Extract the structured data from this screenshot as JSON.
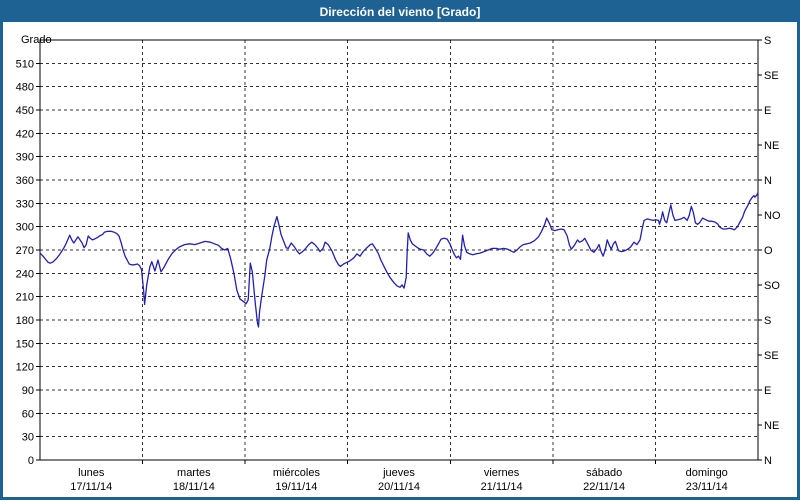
{
  "window": {
    "title": "Dirección del viento [Grado]"
  },
  "colors": {
    "titlebar": "#1e6294",
    "frame": "#1e6294",
    "plot_border": "#000000",
    "grid": "#333333",
    "line": "#2121ae",
    "background": "#ffffff",
    "text": "#000000"
  },
  "chart_data": {
    "type": "line",
    "title": "Dirección del viento [Grado]",
    "ylabel": "Grado",
    "xlabel": "",
    "ylim": [
      0,
      540
    ],
    "xlim": [
      0,
      7
    ],
    "grid": "dashed",
    "legend": "none",
    "y_ticks": [
      0,
      30,
      60,
      90,
      120,
      150,
      180,
      210,
      240,
      270,
      300,
      330,
      360,
      390,
      420,
      450,
      480,
      510
    ],
    "right_axis": [
      {
        "v": 0,
        "label": "N"
      },
      {
        "v": 45,
        "label": "NE"
      },
      {
        "v": 90,
        "label": "E"
      },
      {
        "v": 135,
        "label": "SE"
      },
      {
        "v": 180,
        "label": "S"
      },
      {
        "v": 225,
        "label": "SO"
      },
      {
        "v": 270,
        "label": "O"
      },
      {
        "v": 315,
        "label": "NO"
      },
      {
        "v": 360,
        "label": "N"
      },
      {
        "v": 405,
        "label": "NE"
      },
      {
        "v": 450,
        "label": "E"
      },
      {
        "v": 495,
        "label": "SE"
      },
      {
        "v": 540,
        "label": "S"
      }
    ],
    "x_day_boundaries": [
      1,
      2,
      3,
      4,
      5,
      6
    ],
    "days": [
      {
        "name": "lunes",
        "date": "17/11/14"
      },
      {
        "name": "martes",
        "date": "18/11/14"
      },
      {
        "name": "miércoles",
        "date": "19/11/14"
      },
      {
        "name": "jueves",
        "date": "20/11/14"
      },
      {
        "name": "viernes",
        "date": "21/11/14"
      },
      {
        "name": "sábado",
        "date": "22/11/14"
      },
      {
        "name": "domingo",
        "date": "23/11/14"
      }
    ],
    "series": [
      {
        "name": "Dirección del viento [Grado]",
        "color": "#2121ae",
        "points": [
          [
            0.0,
            266
          ],
          [
            0.03,
            262
          ],
          [
            0.06,
            257
          ],
          [
            0.08,
            254
          ],
          [
            0.1,
            253
          ],
          [
            0.13,
            255
          ],
          [
            0.16,
            259
          ],
          [
            0.19,
            264
          ],
          [
            0.21,
            268
          ],
          [
            0.23,
            272
          ],
          [
            0.25,
            277
          ],
          [
            0.27,
            283
          ],
          [
            0.29,
            289
          ],
          [
            0.31,
            283
          ],
          [
            0.33,
            279
          ],
          [
            0.35,
            283
          ],
          [
            0.37,
            287
          ],
          [
            0.39,
            283
          ],
          [
            0.41,
            279
          ],
          [
            0.43,
            273
          ],
          [
            0.45,
            277
          ],
          [
            0.47,
            288
          ],
          [
            0.49,
            285
          ],
          [
            0.51,
            283
          ],
          [
            0.53,
            284
          ],
          [
            0.56,
            286
          ],
          [
            0.58,
            288
          ],
          [
            0.61,
            290
          ],
          [
            0.63,
            293
          ],
          [
            0.66,
            294
          ],
          [
            0.69,
            294
          ],
          [
            0.72,
            293
          ],
          [
            0.75,
            291
          ],
          [
            0.77,
            288
          ],
          [
            0.79,
            280
          ],
          [
            0.81,
            270
          ],
          [
            0.83,
            262
          ],
          [
            0.85,
            257
          ],
          [
            0.87,
            252
          ],
          [
            0.89,
            251
          ],
          [
            0.92,
            251
          ],
          [
            0.95,
            252
          ],
          [
            0.97,
            250
          ],
          [
            0.99,
            245
          ],
          [
            1.01,
            218
          ],
          [
            1.02,
            200
          ],
          [
            1.04,
            225
          ],
          [
            1.07,
            248
          ],
          [
            1.09,
            255
          ],
          [
            1.12,
            243
          ],
          [
            1.15,
            257
          ],
          [
            1.18,
            242
          ],
          [
            1.21,
            248
          ],
          [
            1.25,
            258
          ],
          [
            1.29,
            266
          ],
          [
            1.33,
            271
          ],
          [
            1.36,
            274
          ],
          [
            1.41,
            277
          ],
          [
            1.46,
            278
          ],
          [
            1.51,
            277
          ],
          [
            1.56,
            279
          ],
          [
            1.61,
            281
          ],
          [
            1.66,
            280
          ],
          [
            1.7,
            278
          ],
          [
            1.74,
            276
          ],
          [
            1.77,
            272
          ],
          [
            1.8,
            270
          ],
          [
            1.83,
            272
          ],
          [
            1.86,
            258
          ],
          [
            1.89,
            240
          ],
          [
            1.92,
            218
          ],
          [
            1.95,
            207
          ],
          [
            1.98,
            204
          ],
          [
            2.01,
            201
          ],
          [
            2.03,
            206
          ],
          [
            2.05,
            253
          ],
          [
            2.07,
            242
          ],
          [
            2.1,
            200
          ],
          [
            2.12,
            176
          ],
          [
            2.13,
            171
          ],
          [
            2.14,
            190
          ],
          [
            2.16,
            210
          ],
          [
            2.19,
            235
          ],
          [
            2.21,
            257
          ],
          [
            2.24,
            272
          ],
          [
            2.26,
            287
          ],
          [
            2.28,
            300
          ],
          [
            2.31,
            313
          ],
          [
            2.33,
            302
          ],
          [
            2.35,
            290
          ],
          [
            2.37,
            283
          ],
          [
            2.4,
            273
          ],
          [
            2.42,
            272
          ],
          [
            2.45,
            279
          ],
          [
            2.48,
            274
          ],
          [
            2.51,
            268
          ],
          [
            2.53,
            265
          ],
          [
            2.56,
            268
          ],
          [
            2.59,
            272
          ],
          [
            2.62,
            277
          ],
          [
            2.65,
            280
          ],
          [
            2.68,
            277
          ],
          [
            2.71,
            272
          ],
          [
            2.73,
            268
          ],
          [
            2.76,
            272
          ],
          [
            2.78,
            280
          ],
          [
            2.81,
            277
          ],
          [
            2.85,
            268
          ],
          [
            2.88,
            258
          ],
          [
            2.91,
            251
          ],
          [
            2.93,
            249
          ],
          [
            2.96,
            252
          ],
          [
            2.99,
            254
          ],
          [
            3.02,
            256
          ],
          [
            3.06,
            260
          ],
          [
            3.09,
            265
          ],
          [
            3.12,
            262
          ],
          [
            3.15,
            268
          ],
          [
            3.18,
            272
          ],
          [
            3.22,
            277
          ],
          [
            3.24,
            278
          ],
          [
            3.27,
            272
          ],
          [
            3.3,
            265
          ],
          [
            3.32,
            258
          ],
          [
            3.35,
            250
          ],
          [
            3.38,
            242
          ],
          [
            3.41,
            235
          ],
          [
            3.45,
            228
          ],
          [
            3.48,
            224
          ],
          [
            3.51,
            222
          ],
          [
            3.53,
            225
          ],
          [
            3.55,
            221
          ],
          [
            3.57,
            235
          ],
          [
            3.58,
            268
          ],
          [
            3.59,
            292
          ],
          [
            3.61,
            283
          ],
          [
            3.63,
            278
          ],
          [
            3.66,
            275
          ],
          [
            3.69,
            272
          ],
          [
            3.71,
            271
          ],
          [
            3.74,
            270
          ],
          [
            3.77,
            265
          ],
          [
            3.8,
            262
          ],
          [
            3.83,
            266
          ],
          [
            3.86,
            272
          ],
          [
            3.89,
            279
          ],
          [
            3.91,
            284
          ],
          [
            3.94,
            285
          ],
          [
            3.97,
            284
          ],
          [
            4.0,
            277
          ],
          [
            4.02,
            270
          ],
          [
            4.04,
            264
          ],
          [
            4.06,
            260
          ],
          [
            4.08,
            262
          ],
          [
            4.1,
            258
          ],
          [
            4.12,
            289
          ],
          [
            4.14,
            275
          ],
          [
            4.16,
            267
          ],
          [
            4.19,
            265
          ],
          [
            4.22,
            264
          ],
          [
            4.25,
            265
          ],
          [
            4.29,
            266
          ],
          [
            4.33,
            268
          ],
          [
            4.37,
            270
          ],
          [
            4.41,
            272
          ],
          [
            4.45,
            272
          ],
          [
            4.48,
            271
          ],
          [
            4.52,
            272
          ],
          [
            4.56,
            271
          ],
          [
            4.59,
            269
          ],
          [
            4.62,
            267
          ],
          [
            4.65,
            270
          ],
          [
            4.68,
            274
          ],
          [
            4.71,
            277
          ],
          [
            4.75,
            278
          ],
          [
            4.78,
            279
          ],
          [
            4.82,
            282
          ],
          [
            4.86,
            287
          ],
          [
            4.89,
            294
          ],
          [
            4.92,
            303
          ],
          [
            4.94,
            311
          ],
          [
            4.97,
            303
          ],
          [
            4.99,
            296
          ],
          [
            5.02,
            295
          ],
          [
            5.05,
            296
          ],
          [
            5.08,
            297
          ],
          [
            5.11,
            296
          ],
          [
            5.14,
            288
          ],
          [
            5.16,
            277
          ],
          [
            5.18,
            271
          ],
          [
            5.21,
            276
          ],
          [
            5.24,
            283
          ],
          [
            5.26,
            280
          ],
          [
            5.29,
            282
          ],
          [
            5.31,
            285
          ],
          [
            5.34,
            278
          ],
          [
            5.37,
            270
          ],
          [
            5.4,
            267
          ],
          [
            5.43,
            272
          ],
          [
            5.45,
            277
          ],
          [
            5.47,
            268
          ],
          [
            5.49,
            262
          ],
          [
            5.51,
            270
          ],
          [
            5.53,
            283
          ],
          [
            5.55,
            276
          ],
          [
            5.57,
            271
          ],
          [
            5.59,
            278
          ],
          [
            5.61,
            281
          ],
          [
            5.63,
            273
          ],
          [
            5.64,
            269
          ],
          [
            5.67,
            268
          ],
          [
            5.7,
            269
          ],
          [
            5.73,
            271
          ],
          [
            5.76,
            274
          ],
          [
            5.79,
            280
          ],
          [
            5.82,
            277
          ],
          [
            5.85,
            283
          ],
          [
            5.87,
            297
          ],
          [
            5.89,
            308
          ],
          [
            5.92,
            310
          ],
          [
            5.95,
            309
          ],
          [
            5.98,
            308
          ],
          [
            6.0,
            309
          ],
          [
            6.03,
            308
          ],
          [
            6.04,
            303
          ],
          [
            6.06,
            312
          ],
          [
            6.07,
            319
          ],
          [
            6.09,
            308
          ],
          [
            6.11,
            305
          ],
          [
            6.13,
            317
          ],
          [
            6.15,
            328
          ],
          [
            6.17,
            315
          ],
          [
            6.19,
            308
          ],
          [
            6.22,
            309
          ],
          [
            6.25,
            310
          ],
          [
            6.28,
            312
          ],
          [
            6.31,
            308
          ],
          [
            6.33,
            315
          ],
          [
            6.35,
            326
          ],
          [
            6.37,
            318
          ],
          [
            6.39,
            305
          ],
          [
            6.41,
            303
          ],
          [
            6.43,
            305
          ],
          [
            6.46,
            311
          ],
          [
            6.49,
            309
          ],
          [
            6.52,
            307
          ],
          [
            6.55,
            307
          ],
          [
            6.58,
            306
          ],
          [
            6.61,
            303
          ],
          [
            6.63,
            299
          ],
          [
            6.66,
            297
          ],
          [
            6.69,
            297
          ],
          [
            6.72,
            298
          ],
          [
            6.75,
            297
          ],
          [
            6.77,
            296
          ],
          [
            6.8,
            300
          ],
          [
            6.82,
            305
          ],
          [
            6.85,
            312
          ],
          [
            6.87,
            320
          ],
          [
            6.9,
            327
          ],
          [
            6.92,
            333
          ],
          [
            6.94,
            337
          ],
          [
            6.96,
            340
          ],
          [
            6.97,
            338
          ],
          [
            6.99,
            341
          ],
          [
            7.0,
            344
          ]
        ]
      }
    ]
  }
}
